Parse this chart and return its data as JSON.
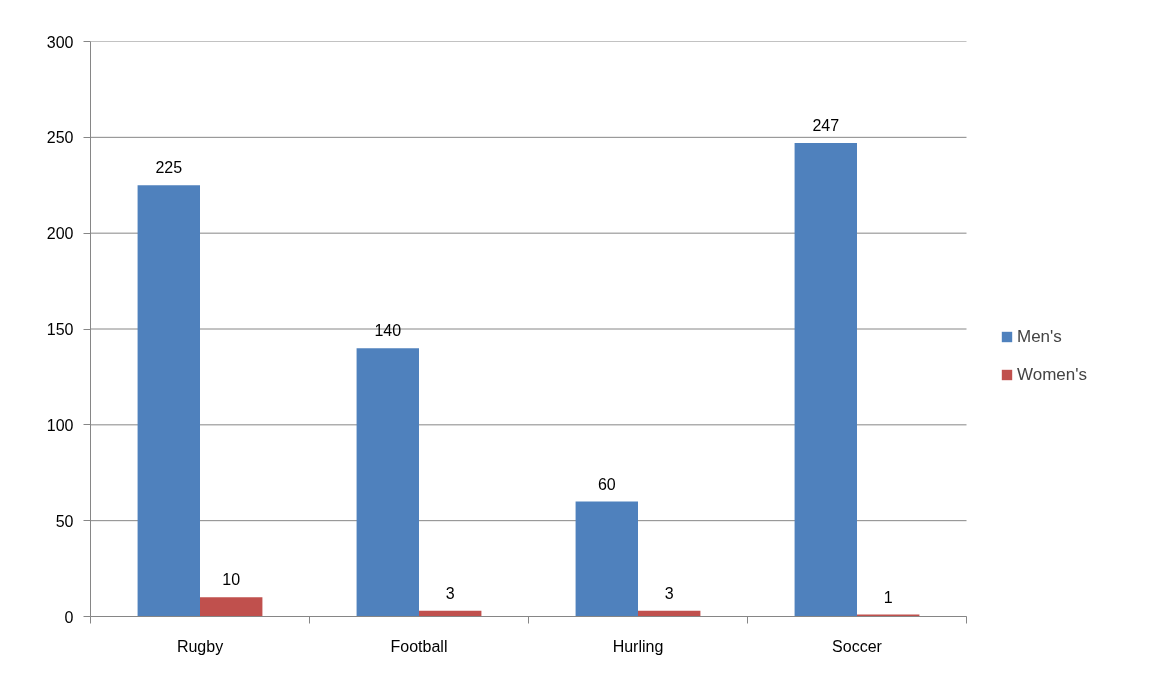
{
  "chart_data": {
    "type": "bar",
    "categories": [
      "Rugby",
      "Football",
      "Hurling",
      "Soccer"
    ],
    "series": [
      {
        "name": "Men's",
        "color": "#4f81bd",
        "values": [
          225,
          140,
          60,
          247
        ]
      },
      {
        "name": "Women's",
        "color": "#c0504d",
        "values": [
          10,
          3,
          3,
          1
        ]
      }
    ],
    "ylim": [
      0,
      300
    ],
    "yticks": [
      0,
      50,
      100,
      150,
      200,
      250,
      300
    ],
    "grid": "y",
    "legend": "right",
    "data_labels": true
  }
}
